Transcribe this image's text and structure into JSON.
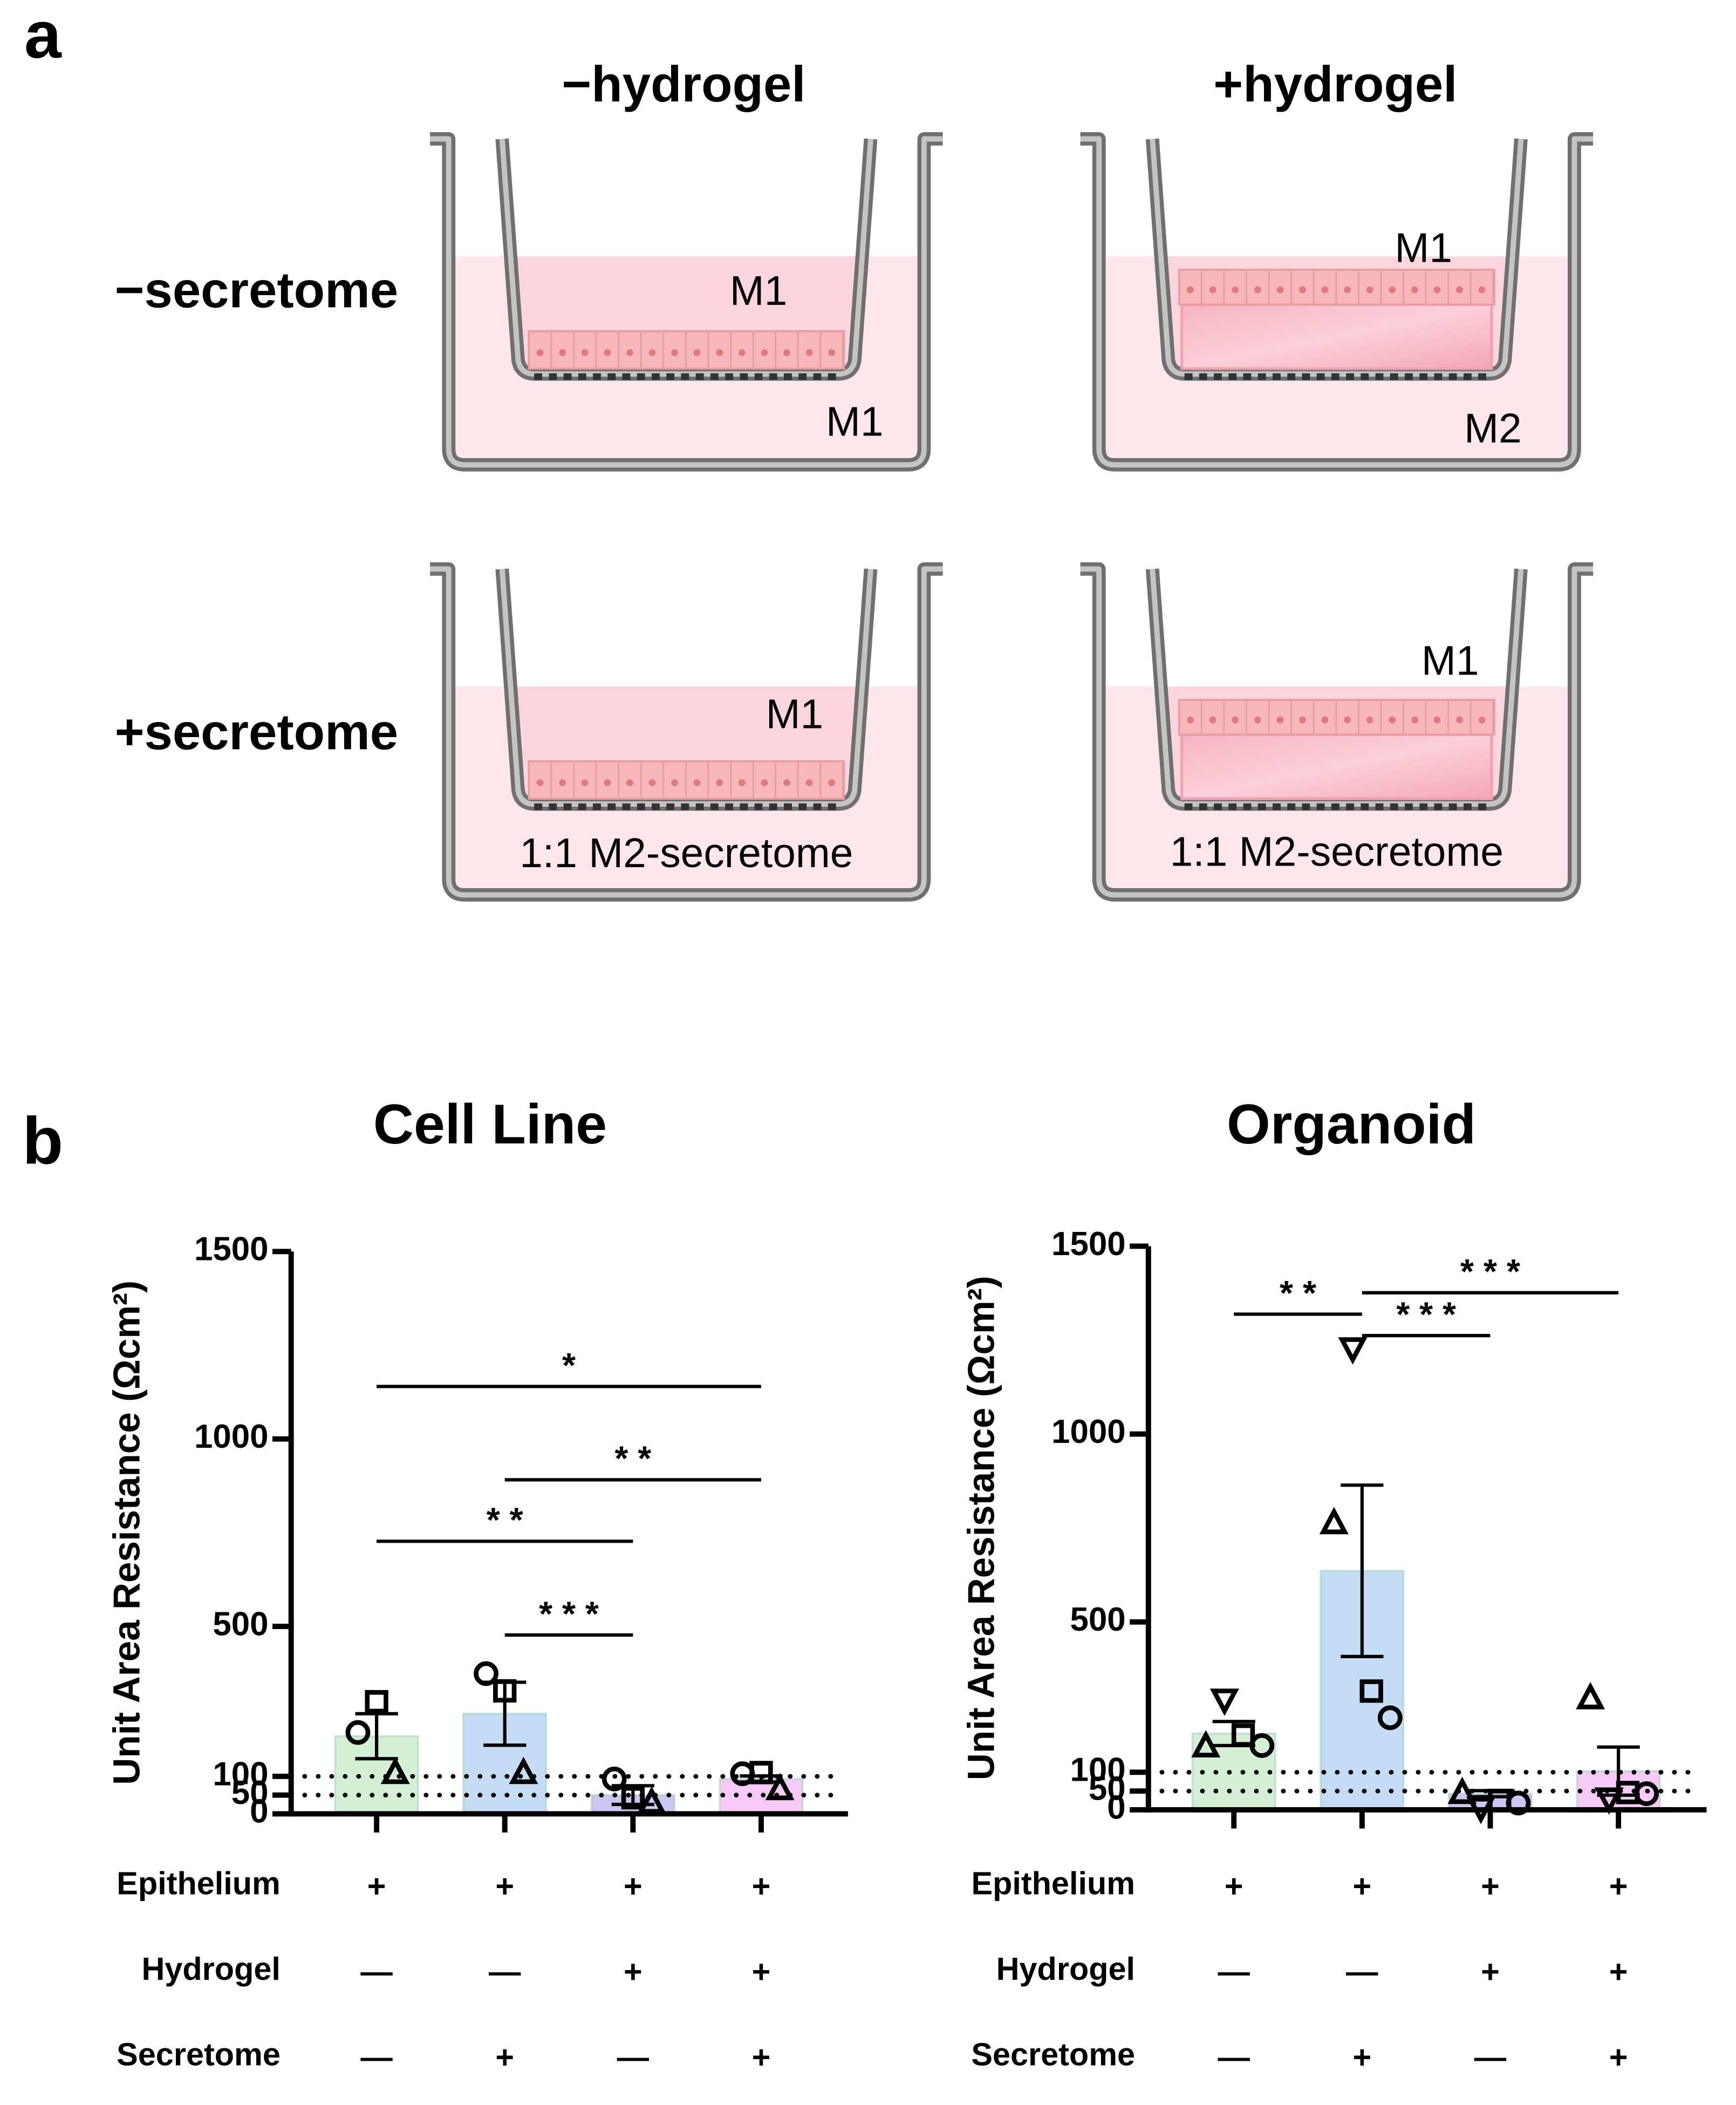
{
  "panel_labels": [
    "a",
    "b"
  ],
  "schematic": {
    "columns": [
      "−hydrogel",
      "+hydrogel"
    ],
    "rows": [
      "−secretome",
      "+secretome"
    ],
    "wells": [
      {
        "hydrogel": false,
        "labels": [
          "M1",
          "M1"
        ]
      },
      {
        "hydrogel": true,
        "labels": [
          "M1",
          "M2"
        ]
      },
      {
        "hydrogel": false,
        "labels": [
          "M1",
          "1:1 M2-secretome"
        ]
      },
      {
        "hydrogel": true,
        "labels": [
          "M1",
          "1:1 M2-secretome"
        ]
      }
    ]
  },
  "chart_data": [
    {
      "type": "bar",
      "title": "Cell Line",
      "y_label": "Unit Area Resistance (Ωcm²)",
      "ylim": [
        0,
        1500
      ],
      "yticks": [
        0,
        50,
        100,
        500,
        1000,
        1500
      ],
      "reference_lines": [
        50,
        100
      ],
      "values": [
        207,
        267,
        50,
        93
      ],
      "errors": [
        60,
        84,
        25,
        8
      ],
      "colors": [
        "#d4f0d4",
        "#c5dcf5",
        "#cbc6f3",
        "#f6c9f6"
      ],
      "points": [
        {
          "marker": "circle",
          "values": [
            217,
            374,
            93,
            107
          ]
        },
        {
          "marker": "square",
          "values": [
            299,
            328,
            43,
            110
          ]
        },
        {
          "marker": "triangle",
          "values": [
            107,
            107,
            28,
            64
          ]
        }
      ],
      "significance": [
        {
          "from": 0,
          "to": 3,
          "y": 1140,
          "label": "*"
        },
        {
          "from": 1,
          "to": 3,
          "y": 891,
          "label": "* *"
        },
        {
          "from": 0,
          "to": 2,
          "y": 727,
          "label": "* *"
        },
        {
          "from": 1,
          "to": 2,
          "y": 477,
          "label": "* * *"
        }
      ],
      "conditions": [
        {
          "name": "Epithelium",
          "values": [
            "+",
            "+",
            "+",
            "+"
          ]
        },
        {
          "name": "Hydrogel",
          "values": [
            "—",
            "—",
            "+",
            "+"
          ]
        },
        {
          "name": "Secretome",
          "values": [
            "—",
            "+",
            "—",
            "+"
          ]
        }
      ]
    },
    {
      "type": "bar",
      "title": "Organoid",
      "y_label": "Unit Area Resistance (Ωcm²)",
      "ylim": [
        0,
        1500
      ],
      "yticks": [
        0,
        50,
        100,
        500,
        1000,
        1500
      ],
      "reference_lines": [
        50,
        100
      ],
      "values": [
        203,
        636,
        43,
        103
      ],
      "errors": [
        32,
        228,
        8,
        64
      ],
      "colors": [
        "#d4f0d4",
        "#c5dcf5",
        "#cbc6f3",
        "#f6c9f6"
      ],
      "points": [
        {
          "marker": "triangle",
          "values": [
            167,
            761,
            43,
            295
          ]
        },
        {
          "marker": "triangle-down",
          "values": [
            295,
            1230,
            7,
            32
          ]
        },
        {
          "marker": "square",
          "values": [
            199,
            316,
            25,
            46
          ]
        },
        {
          "marker": "circle",
          "values": [
            171,
            245,
            18,
            43
          ]
        }
      ],
      "significance": [
        {
          "from": 0,
          "to": 1,
          "y": 1319,
          "label": "* *"
        },
        {
          "from": 1,
          "to": 3,
          "y": 1376,
          "label": "* * *"
        },
        {
          "from": 1,
          "to": 2,
          "y": 1262,
          "label": "* * *"
        }
      ],
      "conditions": [
        {
          "name": "Epithelium",
          "values": [
            "+",
            "+",
            "+",
            "+"
          ]
        },
        {
          "name": "Hydrogel",
          "values": [
            "—",
            "—",
            "+",
            "+"
          ]
        },
        {
          "name": "Secretome",
          "values": [
            "—",
            "+",
            "—",
            "+"
          ]
        }
      ]
    }
  ]
}
